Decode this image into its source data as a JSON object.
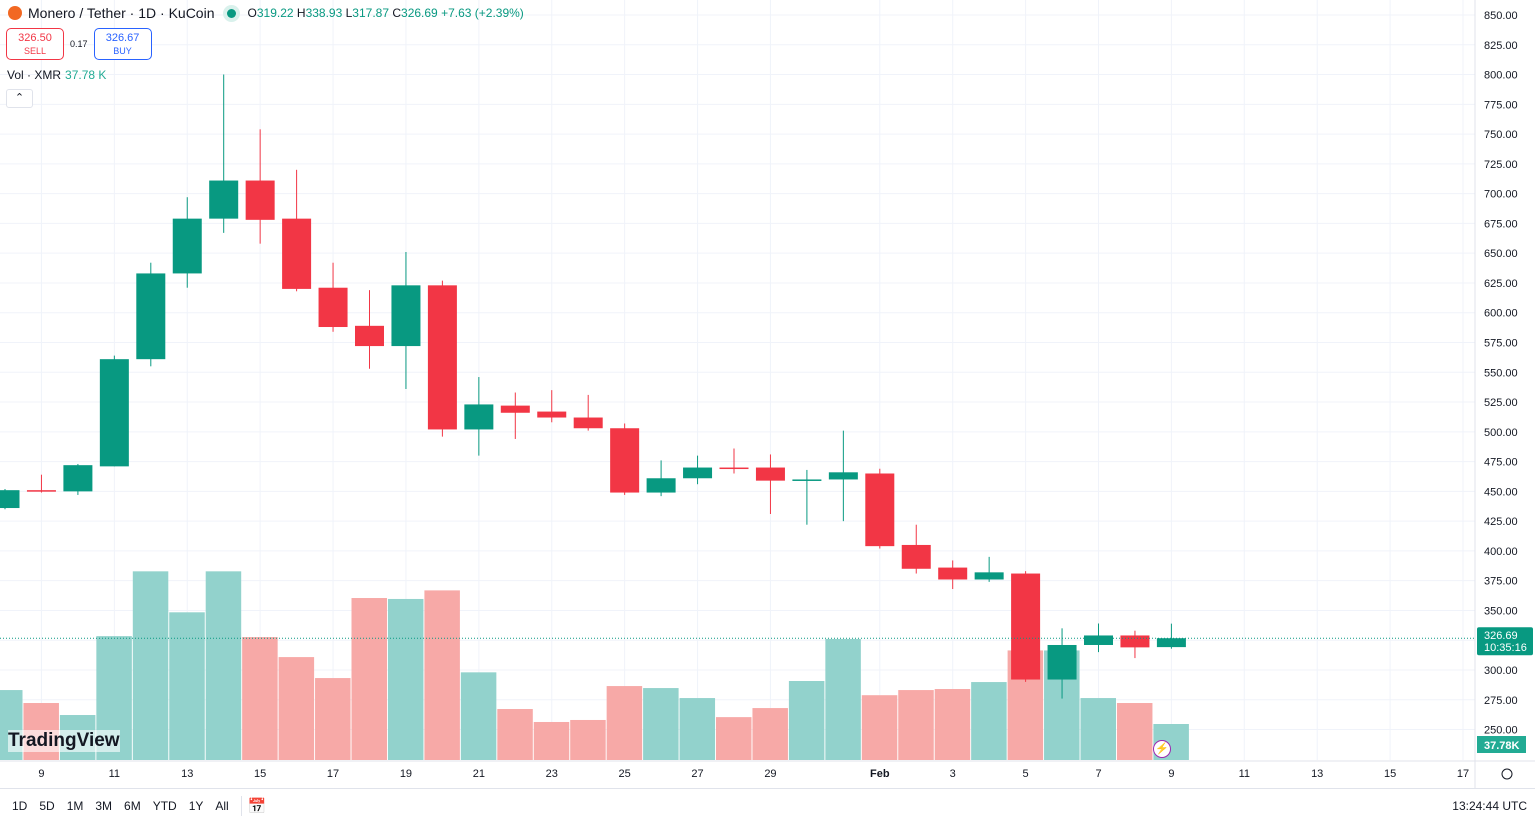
{
  "header": {
    "symbol": "Monero / Tether · 1D · KuCoin",
    "open_label": "O",
    "open": "319.22",
    "high_label": "H",
    "high": "338.93",
    "low_label": "L",
    "low": "317.87",
    "close_label": "C",
    "close": "326.69",
    "change": "+7.63 (+2.39%)"
  },
  "trade": {
    "sell_price": "326.50",
    "sell_label": "SELL",
    "spread": "0.17",
    "buy_price": "326.67",
    "buy_label": "BUY"
  },
  "volume_legend": {
    "label": "Vol · XMR",
    "value": "37.78 K"
  },
  "collapse_icon": "chevron-up-icon",
  "logo": "TradingView",
  "price_label": {
    "price": "326.69",
    "countdown": "10:35:16"
  },
  "volume_label": "37.78K",
  "bottom": {
    "ranges": [
      "1D",
      "5D",
      "1M",
      "3M",
      "6M",
      "YTD",
      "1Y",
      "All"
    ],
    "clock": "13:24:44 UTC"
  },
  "colors": {
    "up": "#089981",
    "down": "#f23645",
    "up_vol": "#92d2cc",
    "down_vol": "#f7a9a7"
  },
  "chart_data": {
    "type": "candlestick",
    "ylim": [
      250,
      850
    ],
    "price_ticks": [
      "850.00",
      "825.00",
      "800.00",
      "775.00",
      "750.00",
      "725.00",
      "700.00",
      "675.00",
      "650.00",
      "625.00",
      "600.00",
      "575.00",
      "550.00",
      "525.00",
      "500.00",
      "475.00",
      "450.00",
      "425.00",
      "400.00",
      "375.00",
      "350.00",
      "325.00",
      "300.00",
      "275.00",
      "250.00"
    ],
    "x_ticks": [
      "9",
      "11",
      "13",
      "15",
      "17",
      "19",
      "21",
      "23",
      "25",
      "27",
      "29",
      "Feb",
      "3",
      "5",
      "7",
      "9",
      "11",
      "13",
      "15",
      "17"
    ],
    "grid": true,
    "dates": [
      "Jan 8",
      "Jan 9",
      "Jan 10",
      "Jan 11",
      "Jan 12",
      "Jan 13",
      "Jan 14",
      "Jan 15",
      "Jan 16",
      "Jan 17",
      "Jan 18",
      "Jan 19",
      "Jan 20",
      "Jan 21",
      "Jan 22",
      "Jan 23",
      "Jan 24",
      "Jan 25",
      "Jan 26",
      "Jan 27",
      "Jan 28",
      "Jan 29",
      "Jan 30",
      "Jan 31",
      "Feb 1",
      "Feb 2",
      "Feb 3",
      "Feb 4",
      "Feb 5",
      "Feb 6",
      "Feb 7",
      "Feb 8",
      "Feb 9"
    ],
    "ohlc": [
      [
        436,
        452,
        435,
        451
      ],
      [
        451,
        464,
        449,
        450
      ],
      [
        450,
        473,
        447,
        472
      ],
      [
        471,
        564,
        471,
        561
      ],
      [
        561,
        642,
        555,
        633
      ],
      [
        633,
        697,
        621,
        679
      ],
      [
        679,
        800,
        667,
        711
      ],
      [
        711,
        754,
        658,
        678
      ],
      [
        679,
        720,
        618,
        620
      ],
      [
        621,
        642,
        584,
        588
      ],
      [
        589,
        619,
        553,
        572
      ],
      [
        572,
        651,
        536,
        623
      ],
      [
        623,
        627,
        496,
        502
      ],
      [
        502,
        546,
        480,
        523
      ],
      [
        522,
        533,
        494,
        516
      ],
      [
        517,
        535,
        508,
        512
      ],
      [
        512,
        531,
        501,
        503
      ],
      [
        503,
        507,
        447,
        449
      ],
      [
        449,
        476,
        446,
        461
      ],
      [
        461,
        480,
        456,
        470
      ],
      [
        470,
        486,
        465,
        469
      ],
      [
        470,
        481,
        431,
        459
      ],
      [
        459,
        468,
        422,
        460
      ],
      [
        460,
        501,
        425,
        466
      ],
      [
        465,
        469,
        402,
        404
      ],
      [
        405,
        422,
        381,
        385
      ],
      [
        386,
        392,
        368,
        376
      ],
      [
        376,
        395,
        374,
        382
      ],
      [
        381,
        383,
        290,
        292
      ],
      [
        292,
        335,
        276,
        321
      ],
      [
        321,
        339,
        315,
        329
      ],
      [
        329,
        333,
        310,
        319
      ],
      [
        319.22,
        338.93,
        317.87,
        326.69
      ]
    ],
    "volume_k": [
      73.4,
      59.8,
      47.2,
      130,
      198,
      155,
      198,
      129,
      108,
      86,
      170,
      169,
      178,
      92,
      53.5,
      39.9,
      42,
      77.6,
      75.5,
      65,
      45,
      54.5,
      82.9,
      127,
      68,
      73.4,
      74.5,
      81.8,
      115,
      115,
      65,
      59.8,
      37.78
    ]
  }
}
